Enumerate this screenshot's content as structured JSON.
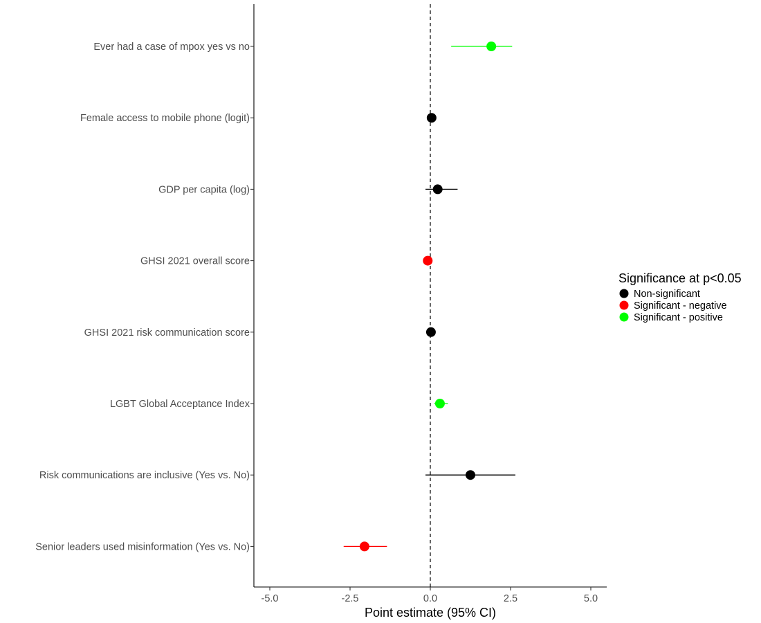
{
  "chart_data": {
    "type": "forest",
    "xlabel": "Point estimate (95% CI)",
    "xlim": [
      -5.5,
      5.5
    ],
    "xticks": [
      -5.0,
      -2.5,
      0.0,
      2.5,
      5.0
    ],
    "xtick_labels": [
      "-5.0",
      "-2.5",
      "0.0",
      "2.5",
      "5.0"
    ],
    "reference_line": 0,
    "grid": false,
    "legend": {
      "title": "Significance at p<0.05",
      "placement": "right",
      "entries": [
        {
          "label": "Non-significant",
          "color": "#000000"
        },
        {
          "label": "Significant - negative",
          "color": "#ff0000"
        },
        {
          "label": "Significant - positive",
          "color": "#00ff00"
        }
      ]
    },
    "rows": [
      {
        "label": "Ever had a case of mpox yes vs no",
        "estimate": 1.9,
        "lower": 0.65,
        "upper": 2.55,
        "group": "Significant - positive"
      },
      {
        "label": "Female access to mobile phone (logit)",
        "estimate": 0.04,
        "lower": 0.0,
        "upper": 0.08,
        "group": "Non-significant"
      },
      {
        "label": "GDP per capita (log)",
        "estimate": 0.23,
        "lower": -0.15,
        "upper": 0.85,
        "group": "Non-significant"
      },
      {
        "label": "GHSI 2021 overall score",
        "estimate": -0.08,
        "lower": -0.12,
        "upper": -0.04,
        "group": "Significant - negative"
      },
      {
        "label": "GHSI 2021 risk communication score",
        "estimate": 0.02,
        "lower": -0.01,
        "upper": 0.05,
        "group": "Non-significant"
      },
      {
        "label": "LGBT Global Acceptance Index",
        "estimate": 0.3,
        "lower": 0.12,
        "upper": 0.55,
        "group": "Significant - positive"
      },
      {
        "label": "Risk communications are inclusive (Yes vs. No)",
        "estimate": 1.25,
        "lower": -0.15,
        "upper": 2.65,
        "group": "Non-significant"
      },
      {
        "label": "Senior leaders used misinformation (Yes vs. No)",
        "estimate": -2.05,
        "lower": -2.7,
        "upper": -1.35,
        "group": "Significant - negative"
      }
    ]
  }
}
